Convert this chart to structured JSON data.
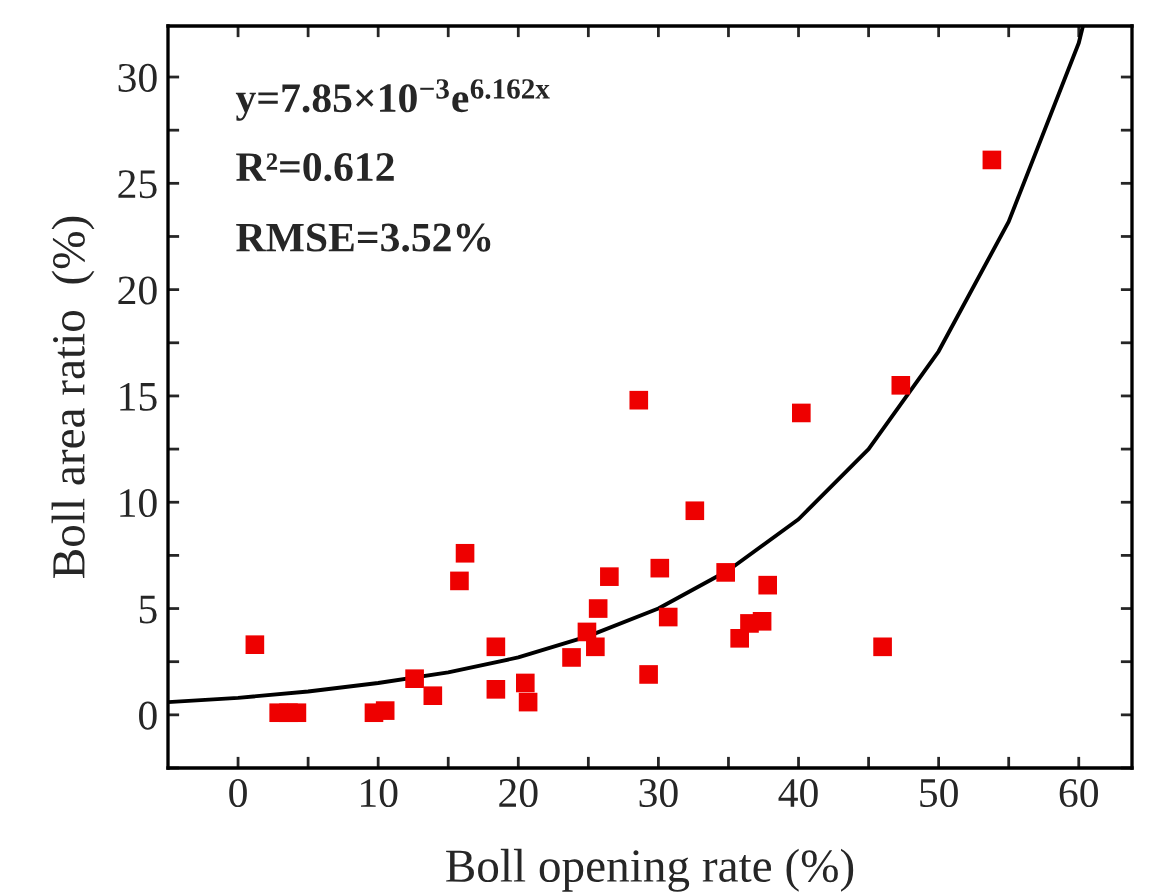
{
  "chart_data": {
    "type": "scatter",
    "xlabel": "Boll opening rate (%)",
    "ylabel": "Boll area ratio  (%)",
    "annotations": [
      "y=7.85×10$^{−3}$e$^{6.162x}$",
      "R²=0.612",
      "RMSE=3.52%"
    ],
    "series": [
      {
        "color": "#ee0000",
        "marker": "square",
        "x": [
          1.2,
          2.9,
          3.6,
          4.2,
          9.7,
          10.5,
          12.6,
          13.9,
          15.8,
          16.2,
          18.4,
          18.4,
          20.5,
          20.7,
          23.8,
          24.9,
          25.5,
          25.7,
          26.5,
          28.6,
          29.3,
          30.1,
          30.7,
          32.6,
          34.8,
          35.8,
          36.5,
          37.4,
          37.8,
          40.2,
          46.0,
          47.3,
          53.8
        ],
        "values": [
          3.3,
          0.1,
          0.1,
          0.1,
          0.1,
          0.2,
          1.7,
          0.9,
          6.3,
          7.6,
          3.2,
          1.2,
          1.5,
          0.6,
          2.7,
          3.9,
          3.2,
          5.0,
          6.5,
          14.8,
          1.9,
          6.9,
          4.6,
          9.6,
          6.7,
          3.6,
          4.3,
          4.4,
          6.1,
          14.2,
          3.2,
          15.5,
          26.1
        ]
      },
      {
        "type": "line",
        "color": "#000000",
        "marker": "none",
        "line_style": "solid",
        "x": [
          -5,
          0,
          5,
          10,
          15,
          20,
          25,
          30,
          35,
          40,
          45,
          50,
          55,
          60,
          60.3
        ],
        "values": [
          0.6,
          0.8,
          1.1,
          1.5,
          2.0,
          2.7,
          3.7,
          5.0,
          6.8,
          9.2,
          12.5,
          17.1,
          23.2,
          31.6,
          32.4
        ]
      }
    ],
    "xlim": [
      -5,
      63.8
    ],
    "ylim": [
      -2.5,
      32.4
    ],
    "xticks": [
      0,
      {
        "value": 5,
        "label": null
      },
      10,
      {
        "value": 15,
        "label": null
      },
      20,
      {
        "value": 25,
        "label": null
      },
      30,
      {
        "value": 35,
        "label": null
      },
      40,
      {
        "value": 45,
        "label": null
      },
      50,
      {
        "value": 55,
        "label": null
      },
      60
    ],
    "yticks": [
      {
        "value": -2.5,
        "label": null
      },
      0,
      {
        "value": 2.5,
        "label": null
      },
      5,
      {
        "value": 7.5,
        "label": null
      },
      10,
      {
        "value": 12.5,
        "label": null
      },
      15,
      {
        "value": 17.5,
        "label": null
      },
      20,
      {
        "value": 22.5,
        "label": null
      },
      25,
      {
        "value": 27.5,
        "label": null
      },
      30
    ],
    "grid": false,
    "legend": false
  }
}
